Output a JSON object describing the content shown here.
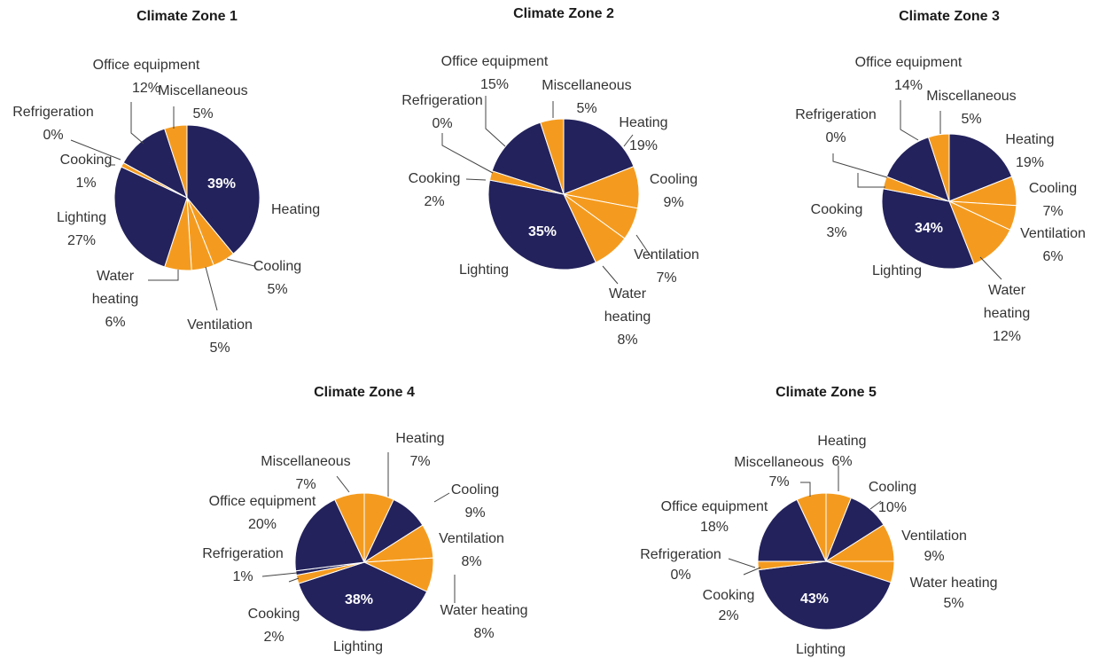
{
  "colors": {
    "navy": "#23225c",
    "orange": "#f49b1f"
  },
  "chart_data": [
    {
      "type": "pie",
      "title": "Climate Zone 1",
      "slices": [
        {
          "name": "Heating",
          "value": 39,
          "label": "39%",
          "color": "navy"
        },
        {
          "name": "Cooling",
          "value": 5,
          "label": "5%",
          "color": "orange"
        },
        {
          "name": "Ventilation",
          "value": 5,
          "label": "5%",
          "color": "orange"
        },
        {
          "name": "Water heating",
          "value": 6,
          "label": "6%",
          "color": "orange"
        },
        {
          "name": "Lighting",
          "value": 27,
          "label": "27%",
          "color": "navy"
        },
        {
          "name": "Cooking",
          "value": 1,
          "label": "1%",
          "color": "orange"
        },
        {
          "name": "Refrigeration",
          "value": 0,
          "label": "0%",
          "color": "navy"
        },
        {
          "name": "Office equipment",
          "value": 12,
          "label": "12%",
          "color": "navy"
        },
        {
          "name": "Miscellaneous",
          "value": 5,
          "label": "5%",
          "color": "orange"
        }
      ]
    },
    {
      "type": "pie",
      "title": "Climate Zone 2",
      "slices": [
        {
          "name": "Heating",
          "value": 19,
          "label": "19%",
          "color": "navy"
        },
        {
          "name": "Cooling",
          "value": 9,
          "label": "9%",
          "color": "orange"
        },
        {
          "name": "Ventilation",
          "value": 7,
          "label": "7%",
          "color": "orange"
        },
        {
          "name": "Water heating",
          "value": 8,
          "label": "8%",
          "color": "orange"
        },
        {
          "name": "Lighting",
          "value": 35,
          "label": "35%",
          "color": "navy"
        },
        {
          "name": "Cooking",
          "value": 2,
          "label": "2%",
          "color": "orange"
        },
        {
          "name": "Refrigeration",
          "value": 0,
          "label": "0%",
          "color": "navy"
        },
        {
          "name": "Office equipment",
          "value": 15,
          "label": "15%",
          "color": "navy"
        },
        {
          "name": "Miscellaneous",
          "value": 5,
          "label": "5%",
          "color": "orange"
        }
      ]
    },
    {
      "type": "pie",
      "title": "Climate Zone 3",
      "slices": [
        {
          "name": "Heating",
          "value": 19,
          "label": "19%",
          "color": "navy"
        },
        {
          "name": "Cooling",
          "value": 7,
          "label": "7%",
          "color": "orange"
        },
        {
          "name": "Ventilation",
          "value": 6,
          "label": "6%",
          "color": "orange"
        },
        {
          "name": "Water heating",
          "value": 12,
          "label": "12%",
          "color": "orange"
        },
        {
          "name": "Lighting",
          "value": 34,
          "label": "34%",
          "color": "navy"
        },
        {
          "name": "Cooking",
          "value": 3,
          "label": "3%",
          "color": "orange"
        },
        {
          "name": "Refrigeration",
          "value": 0,
          "label": "0%",
          "color": "navy"
        },
        {
          "name": "Office equipment",
          "value": 14,
          "label": "14%",
          "color": "navy"
        },
        {
          "name": "Miscellaneous",
          "value": 5,
          "label": "5%",
          "color": "orange"
        }
      ]
    },
    {
      "type": "pie",
      "title": "Climate Zone 4",
      "slices": [
        {
          "name": "Heating",
          "value": 7,
          "label": "7%",
          "color": "orange"
        },
        {
          "name": "Cooling",
          "value": 9,
          "label": "9%",
          "color": "navy"
        },
        {
          "name": "Ventilation",
          "value": 8,
          "label": "8%",
          "color": "orange"
        },
        {
          "name": "Water heating",
          "value": 8,
          "label": "8%",
          "color": "orange"
        },
        {
          "name": "Lighting",
          "value": 38,
          "label": "38%",
          "color": "navy"
        },
        {
          "name": "Cooking",
          "value": 2,
          "label": "2%",
          "color": "orange"
        },
        {
          "name": "Refrigeration",
          "value": 1,
          "label": "1%",
          "color": "navy"
        },
        {
          "name": "Office equipment",
          "value": 20,
          "label": "20%",
          "color": "navy"
        },
        {
          "name": "Miscellaneous",
          "value": 7,
          "label": "7%",
          "color": "orange"
        }
      ]
    },
    {
      "type": "pie",
      "title": "Climate Zone 5",
      "slices": [
        {
          "name": "Heating",
          "value": 6,
          "label": "6%",
          "color": "orange"
        },
        {
          "name": "Cooling",
          "value": 10,
          "label": "10%",
          "color": "navy"
        },
        {
          "name": "Ventilation",
          "value": 9,
          "label": "9%",
          "color": "orange"
        },
        {
          "name": "Water heating",
          "value": 5,
          "label": "5%",
          "color": "orange"
        },
        {
          "name": "Lighting",
          "value": 43,
          "label": "43%",
          "color": "navy"
        },
        {
          "name": "Cooking",
          "value": 2,
          "label": "2%",
          "color": "orange"
        },
        {
          "name": "Refrigeration",
          "value": 0,
          "label": "0%",
          "color": "navy"
        },
        {
          "name": "Office equipment",
          "value": 18,
          "label": "18%",
          "color": "navy"
        },
        {
          "name": "Miscellaneous",
          "value": 7,
          "label": "7%",
          "color": "orange"
        }
      ]
    }
  ]
}
